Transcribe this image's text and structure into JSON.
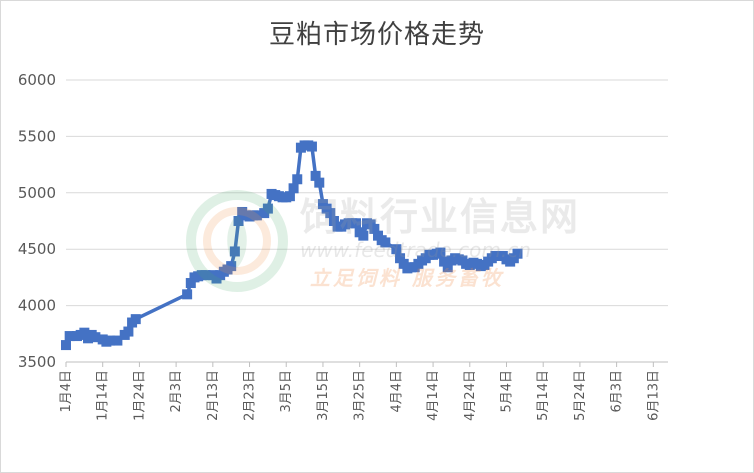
{
  "chart_data": {
    "type": "line",
    "title": "豆粕市场价格走势",
    "ylim": [
      3500,
      6000
    ],
    "yticks": [
      3500,
      4000,
      4500,
      5000,
      5500,
      6000
    ],
    "grid": true,
    "xticks": [
      {
        "label": "1月4日",
        "day": 0
      },
      {
        "label": "1月14日",
        "day": 10
      },
      {
        "label": "1月24日",
        "day": 20
      },
      {
        "label": "2月3日",
        "day": 30
      },
      {
        "label": "2月13日",
        "day": 40
      },
      {
        "label": "2月23日",
        "day": 50
      },
      {
        "label": "3月5日",
        "day": 60
      },
      {
        "label": "3月15日",
        "day": 70
      },
      {
        "label": "3月25日",
        "day": 80
      },
      {
        "label": "4月4日",
        "day": 90
      },
      {
        "label": "4月14日",
        "day": 100
      },
      {
        "label": "4月24日",
        "day": 110
      },
      {
        "label": "5月4日",
        "day": 120
      },
      {
        "label": "5月14日",
        "day": 130
      },
      {
        "label": "5月24日",
        "day": 140
      },
      {
        "label": "6月3日",
        "day": 150
      },
      {
        "label": "6月13日",
        "day": 160
      }
    ],
    "series": [
      {
        "color": "#4472c4",
        "points": [
          [
            0,
            3650
          ],
          [
            1,
            3730
          ],
          [
            3,
            3730
          ],
          [
            4,
            3740
          ],
          [
            5,
            3760
          ],
          [
            6,
            3710
          ],
          [
            7,
            3740
          ],
          [
            8,
            3720
          ],
          [
            10,
            3700
          ],
          [
            11,
            3680
          ],
          [
            12,
            3690
          ],
          [
            14,
            3690
          ],
          [
            16,
            3740
          ],
          [
            17,
            3770
          ],
          [
            18,
            3850
          ],
          [
            19,
            3880
          ],
          [
            33,
            4100
          ],
          [
            34,
            4200
          ],
          [
            35,
            4250
          ],
          [
            36,
            4260
          ],
          [
            37,
            4270
          ],
          [
            38,
            4270
          ],
          [
            40,
            4270
          ],
          [
            41,
            4240
          ],
          [
            42,
            4270
          ],
          [
            43,
            4300
          ],
          [
            44,
            4320
          ],
          [
            45,
            4350
          ],
          [
            46,
            4480
          ],
          [
            47,
            4750
          ],
          [
            48,
            4830
          ],
          [
            49,
            4800
          ],
          [
            50,
            4790
          ],
          [
            51,
            4800
          ],
          [
            52,
            4800
          ],
          [
            54,
            4820
          ],
          [
            55,
            4860
          ],
          [
            56,
            4990
          ],
          [
            57,
            4980
          ],
          [
            58,
            4970
          ],
          [
            59,
            4960
          ],
          [
            60,
            4960
          ],
          [
            61,
            4970
          ],
          [
            62,
            5040
          ],
          [
            63,
            5120
          ],
          [
            64,
            5400
          ],
          [
            65,
            5420
          ],
          [
            66,
            5420
          ],
          [
            67,
            5410
          ],
          [
            68,
            5150
          ],
          [
            69,
            5090
          ],
          [
            70,
            4900
          ],
          [
            71,
            4860
          ],
          [
            72,
            4820
          ],
          [
            73,
            4750
          ],
          [
            74,
            4700
          ],
          [
            75,
            4700
          ],
          [
            76,
            4720
          ],
          [
            77,
            4730
          ],
          [
            78,
            4730
          ],
          [
            79,
            4730
          ],
          [
            80,
            4650
          ],
          [
            81,
            4620
          ],
          [
            82,
            4730
          ],
          [
            83,
            4720
          ],
          [
            84,
            4680
          ],
          [
            85,
            4620
          ],
          [
            86,
            4580
          ],
          [
            87,
            4560
          ],
          [
            90,
            4500
          ],
          [
            91,
            4420
          ],
          [
            92,
            4370
          ],
          [
            93,
            4330
          ],
          [
            94,
            4340
          ],
          [
            95,
            4340
          ],
          [
            96,
            4370
          ],
          [
            97,
            4400
          ],
          [
            98,
            4420
          ],
          [
            99,
            4450
          ],
          [
            100,
            4450
          ],
          [
            101,
            4460
          ],
          [
            102,
            4470
          ],
          [
            103,
            4390
          ],
          [
            104,
            4340
          ],
          [
            105,
            4400
          ],
          [
            106,
            4420
          ],
          [
            107,
            4410
          ],
          [
            108,
            4400
          ],
          [
            109,
            4370
          ],
          [
            110,
            4360
          ],
          [
            111,
            4380
          ],
          [
            112,
            4370
          ],
          [
            113,
            4350
          ],
          [
            114,
            4360
          ],
          [
            115,
            4390
          ],
          [
            116,
            4420
          ],
          [
            117,
            4440
          ],
          [
            118,
            4440
          ],
          [
            119,
            4440
          ],
          [
            120,
            4410
          ],
          [
            121,
            4390
          ],
          [
            122,
            4420
          ],
          [
            123,
            4460
          ]
        ]
      }
    ]
  },
  "watermark": {
    "name": "饲料行业信息网",
    "url": "www.feedtrade.com.cn",
    "slogan": "立足饲料   服务畜牧"
  }
}
